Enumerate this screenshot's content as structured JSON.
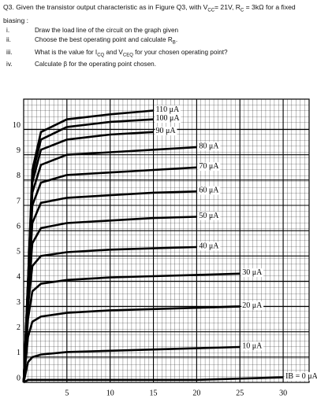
{
  "question": [
    "Q3. Given the transistor output characteristic as in Figure Q3, with V",
    "CC",
    "= 21V, R",
    "C",
    " = 3kΩ  for a fixed biasing :"
  ],
  "items": [
    {
      "marker": "i.",
      "parts": [
        "Draw the load line of the circuit on the graph given"
      ]
    },
    {
      "marker": "ii.",
      "parts": [
        "Choose the best operating point and calculate R",
        "B",
        "."
      ]
    },
    {
      "marker": "iii.",
      "parts": [
        "What is the value for I",
        "CQ",
        " and V",
        "CEQ",
        " for your chosen operating point?"
      ]
    },
    {
      "marker": "iv.",
      "parts": [
        "Calculate β for the operating point chosen."
      ]
    }
  ],
  "chart_data": {
    "type": "line",
    "color": "#000000",
    "grid": true,
    "x": [
      0,
      0.5,
      1,
      2,
      5,
      10,
      15,
      20,
      25,
      30
    ],
    "xlim": [
      0,
      33
    ],
    "ylim": [
      0,
      11.2
    ],
    "xticks": [
      5,
      10,
      15,
      20,
      25,
      30
    ],
    "yticks": [
      0,
      1,
      2,
      3,
      4,
      5,
      6,
      7,
      8,
      9,
      10
    ],
    "series": [
      {
        "name": "110 μA",
        "values": [
          0,
          4,
          8.4,
          9.9,
          10.4,
          10.6,
          10.75,
          null,
          null,
          null
        ]
      },
      {
        "name": "100 μA",
        "values": [
          0,
          4,
          8.2,
          9.6,
          10.1,
          10.3,
          10.4,
          null,
          null,
          null
        ]
      },
      {
        "name": "90 μA",
        "values": [
          0,
          3.9,
          7.9,
          9.2,
          9.6,
          9.8,
          9.9,
          null,
          null,
          null
        ]
      },
      {
        "name": "80 μA",
        "values": [
          0,
          3.8,
          7.5,
          8.6,
          9.0,
          9.1,
          9.2,
          9.3,
          null,
          null
        ]
      },
      {
        "name": "70 μA",
        "values": [
          0,
          3.7,
          7.0,
          7.9,
          8.2,
          8.3,
          8.4,
          8.5,
          null,
          null
        ]
      },
      {
        "name": "60 μA",
        "values": [
          0,
          3.5,
          6.3,
          7.1,
          7.3,
          7.4,
          7.5,
          7.55,
          null,
          null
        ]
      },
      {
        "name": "50 μA",
        "values": [
          0,
          3.3,
          5.5,
          6.1,
          6.3,
          6.4,
          6.5,
          6.55,
          null,
          null
        ]
      },
      {
        "name": "40 μA",
        "values": [
          0,
          3,
          4.6,
          5.0,
          5.15,
          5.25,
          5.3,
          5.35,
          null,
          null
        ]
      },
      {
        "name": "30 μA",
        "values": [
          0,
          2.5,
          3.6,
          3.9,
          4.05,
          4.15,
          4.2,
          4.25,
          4.3,
          null
        ]
      },
      {
        "name": "20 μA",
        "values": [
          0,
          1.8,
          2.4,
          2.6,
          2.75,
          2.85,
          2.9,
          2.95,
          3.0,
          null
        ]
      },
      {
        "name": "10 μA",
        "values": [
          0,
          0.8,
          1.0,
          1.1,
          1.2,
          1.25,
          1.3,
          1.35,
          1.4,
          null
        ]
      },
      {
        "name": "IB = 0 μA",
        "values": [
          0,
          0.1,
          0.1,
          0.1,
          0.1,
          0.1,
          0.1,
          0.1,
          0.15,
          0.2
        ]
      }
    ]
  }
}
